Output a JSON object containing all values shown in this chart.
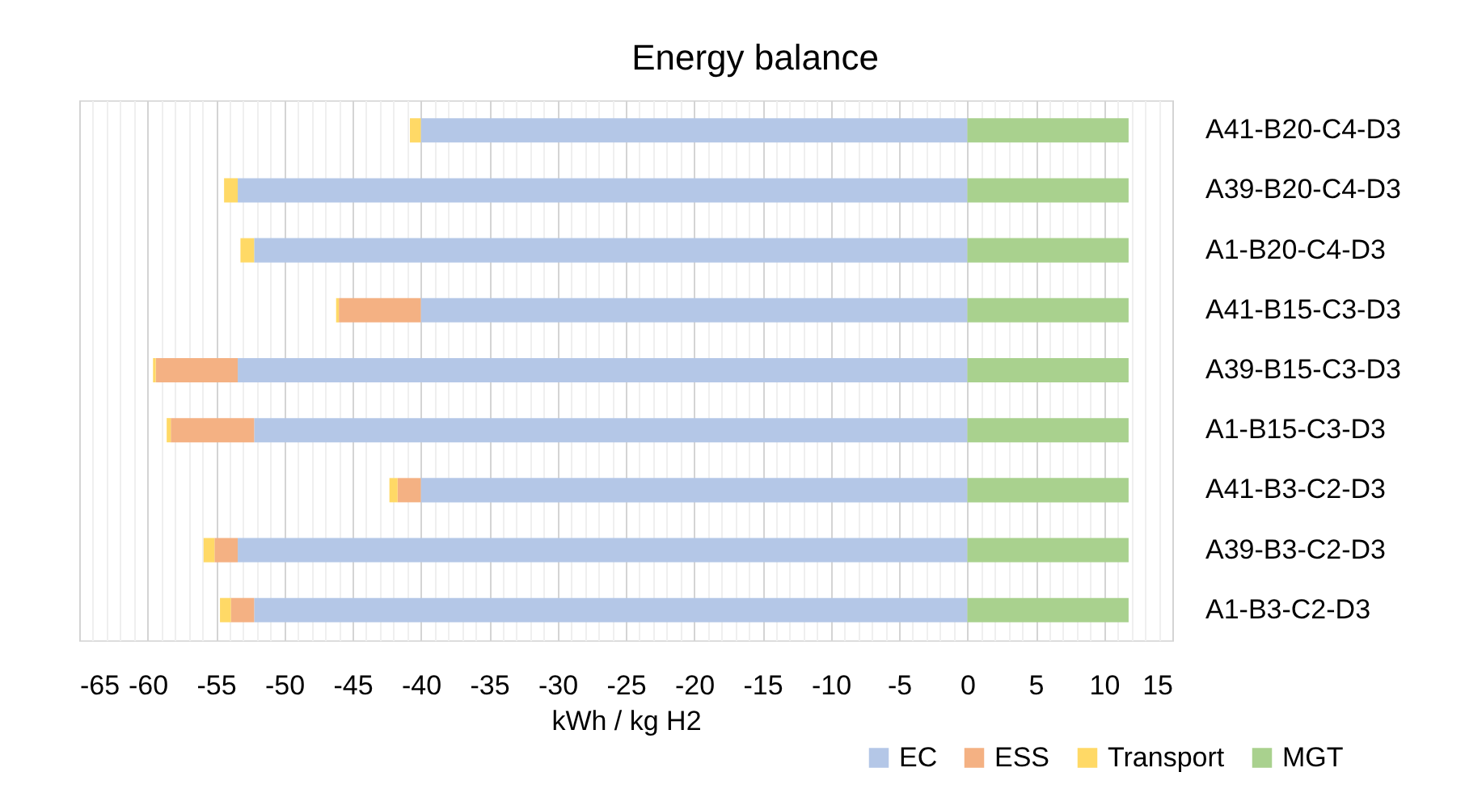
{
  "chart_data": {
    "type": "bar",
    "orientation": "horizontal",
    "stacked": true,
    "title": "Energy balance",
    "xlabel": "kWh / kg H2",
    "categories": [
      "A41-B20-C4-D3",
      "A39-B20-C4-D3",
      "A1-B20-C4-D3",
      "A41-B15-C3-D3",
      "A39-B15-C3-D3",
      "A1-B15-C3-D3",
      "A41-B3-C2-D3",
      "A39-B3-C2-D3",
      "A1-B3-C2-D3"
    ],
    "series": [
      {
        "name": "EC",
        "color": "#b4c7e7",
        "values": [
          -40,
          -53.4,
          -52.2,
          -40,
          -53.4,
          -52.2,
          -40,
          -53.4,
          -52.2
        ]
      },
      {
        "name": "ESS",
        "color": "#f4b183",
        "values": [
          null,
          null,
          null,
          -6,
          -6,
          -6.1,
          -1.7,
          -1.7,
          -1.7
        ]
      },
      {
        "name": "Transport",
        "color": "#ffd966",
        "values": [
          -0.8,
          -1,
          -1,
          -0.2,
          -0.2,
          -0.3,
          -0.6,
          -0.8,
          -0.8
        ]
      },
      {
        "name": "MGT",
        "color": "#a9d18e",
        "values": [
          11.8,
          11.8,
          11.8,
          11.8,
          11.8,
          11.8,
          11.8,
          11.8,
          11.8
        ]
      }
    ],
    "xlim": [
      -65,
      15
    ],
    "xticks": [
      -65,
      -60,
      -55,
      -50,
      -45,
      -40,
      -35,
      -30,
      -25,
      -20,
      -15,
      -10,
      -5,
      0,
      5,
      10,
      15
    ],
    "grid": "x",
    "legend": "bottom"
  }
}
